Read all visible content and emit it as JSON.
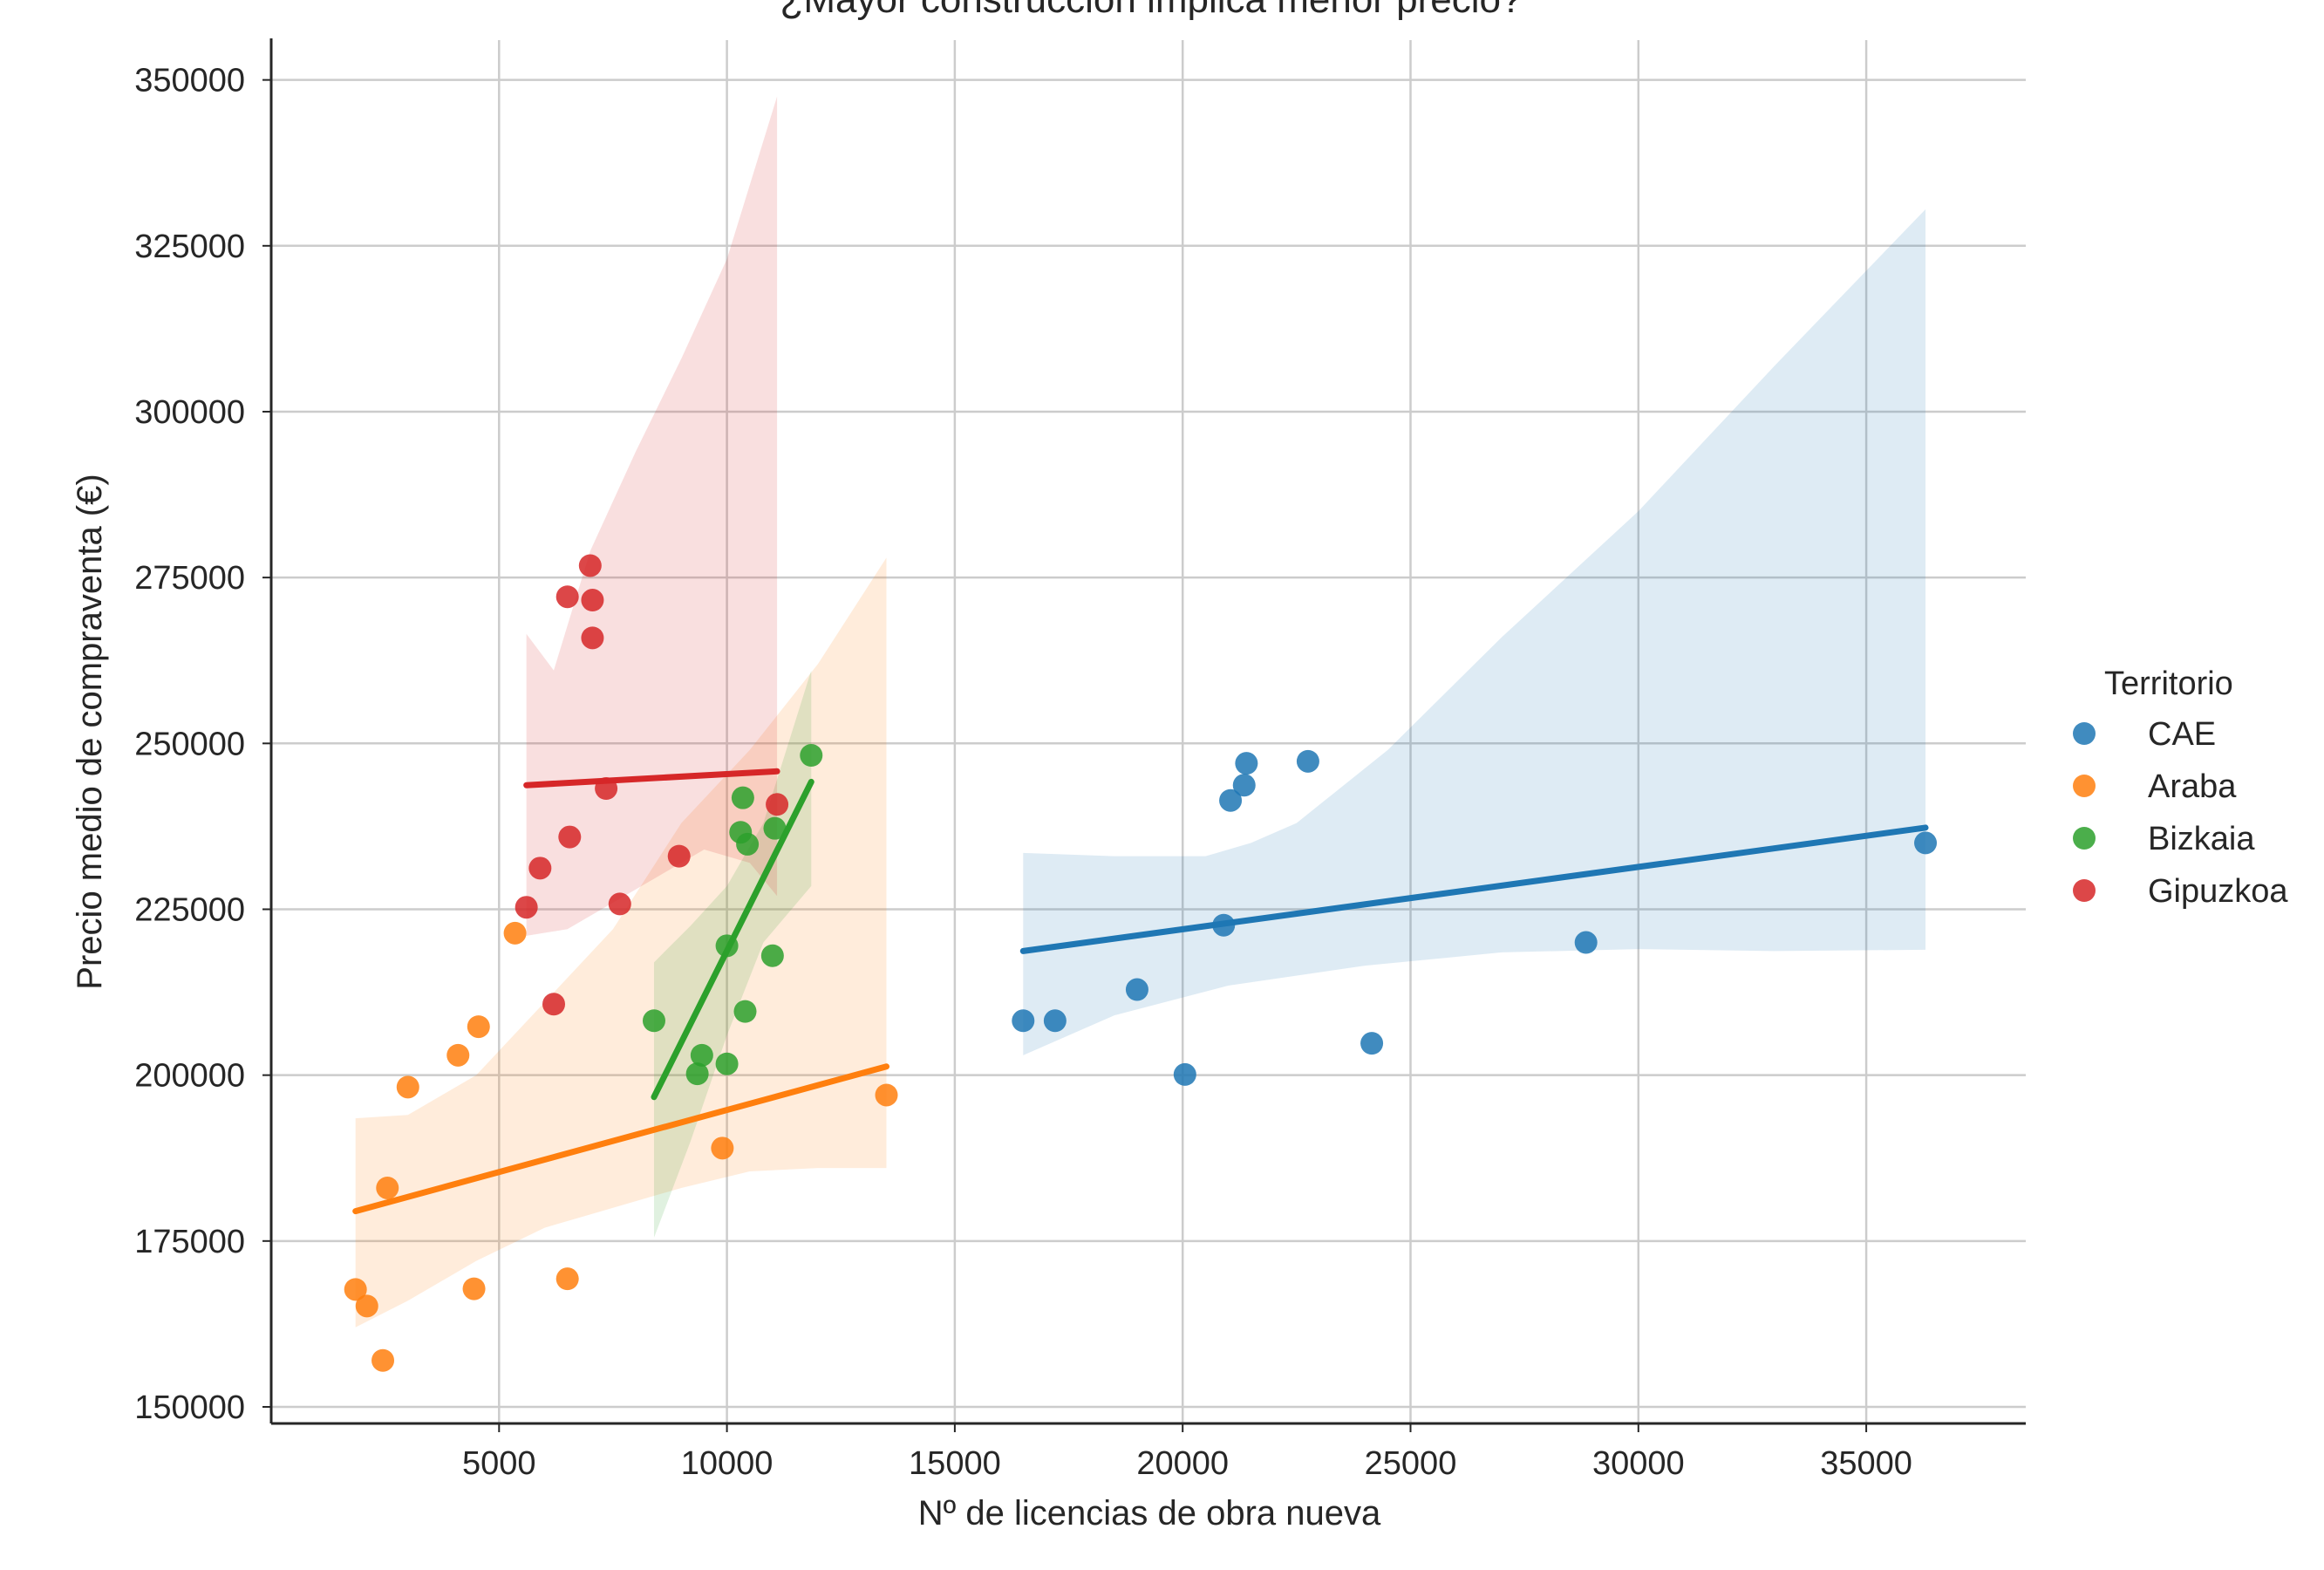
{
  "chart_data": {
    "type": "scatter",
    "title": "¿Mayor construcción implica menor precio?",
    "xlabel": "Nº de licencias de obra nueva",
    "ylabel": "Precio medio de compraventa (€)",
    "xlim": [
      0,
      38500
    ],
    "ylim": [
      147500,
      356000
    ],
    "xticks": [
      5000,
      10000,
      15000,
      20000,
      25000,
      30000,
      35000
    ],
    "yticks": [
      150000,
      175000,
      200000,
      225000,
      250000,
      275000,
      300000,
      325000,
      350000
    ],
    "grid": true,
    "legend": {
      "title": "Territorio",
      "placement": "right"
    },
    "series": [
      {
        "name": "CAE",
        "color": "#1f77b4",
        "points": [
          [
            16500,
            208200
          ],
          [
            17200,
            208200
          ],
          [
            19000,
            212900
          ],
          [
            20050,
            200100
          ],
          [
            20900,
            222600
          ],
          [
            21050,
            241400
          ],
          [
            21350,
            243700
          ],
          [
            21400,
            247000
          ],
          [
            22750,
            247300
          ],
          [
            24150,
            204800
          ],
          [
            28850,
            220000
          ],
          [
            36300,
            235000
          ]
        ],
        "fit": [
          [
            16500,
            218700
          ],
          [
            36300,
            237300
          ]
        ],
        "ci_upper": [
          [
            16500,
            233500
          ],
          [
            18500,
            233000
          ],
          [
            20500,
            233000
          ],
          [
            21500,
            235000
          ],
          [
            22500,
            238000
          ],
          [
            24500,
            249000
          ],
          [
            27000,
            266000
          ],
          [
            30000,
            285000
          ],
          [
            33000,
            307000
          ],
          [
            36300,
            330500
          ]
        ],
        "ci_lower": [
          [
            16500,
            203000
          ],
          [
            18500,
            209000
          ],
          [
            21000,
            213500
          ],
          [
            24000,
            216500
          ],
          [
            27000,
            218500
          ],
          [
            30000,
            219000
          ],
          [
            33000,
            218700
          ],
          [
            36300,
            218900
          ]
        ]
      },
      {
        "name": "Araba",
        "color": "#ff7f0e",
        "points": [
          [
            1850,
            167700
          ],
          [
            2100,
            165200
          ],
          [
            2450,
            157000
          ],
          [
            2550,
            183000
          ],
          [
            3000,
            198200
          ],
          [
            4100,
            203000
          ],
          [
            4450,
            167800
          ],
          [
            4550,
            207300
          ],
          [
            5350,
            221400
          ],
          [
            6500,
            169300
          ],
          [
            9900,
            189000
          ],
          [
            13500,
            197000
          ]
        ],
        "fit": [
          [
            1850,
            179500
          ],
          [
            13500,
            201300
          ]
        ],
        "ci_upper": [
          [
            1850,
            193500
          ],
          [
            3000,
            194000
          ],
          [
            4500,
            200000
          ],
          [
            6000,
            211000
          ],
          [
            7500,
            222000
          ],
          [
            9000,
            238000
          ],
          [
            10500,
            249000
          ],
          [
            12000,
            262000
          ],
          [
            13500,
            278000
          ]
        ],
        "ci_lower": [
          [
            1850,
            162000
          ],
          [
            3000,
            166000
          ],
          [
            4500,
            172000
          ],
          [
            6000,
            177000
          ],
          [
            7500,
            180000
          ],
          [
            9000,
            183000
          ],
          [
            10500,
            185500
          ],
          [
            12000,
            186000
          ],
          [
            13500,
            186000
          ]
        ]
      },
      {
        "name": "Bizkaia",
        "color": "#2ca02c",
        "points": [
          [
            8400,
            208200
          ],
          [
            9350,
            200200
          ],
          [
            9450,
            203000
          ],
          [
            10000,
            201700
          ],
          [
            10000,
            219500
          ],
          [
            10300,
            236600
          ],
          [
            10350,
            241800
          ],
          [
            10400,
            209600
          ],
          [
            10450,
            234800
          ],
          [
            11000,
            218000
          ],
          [
            11050,
            237200
          ],
          [
            11850,
            248200
          ]
        ],
        "fit": [
          [
            8400,
            196700
          ],
          [
            11850,
            244200
          ]
        ],
        "ci_upper": [
          [
            8400,
            217000
          ],
          [
            9200,
            222500
          ],
          [
            10000,
            228500
          ],
          [
            10800,
            238000
          ],
          [
            11850,
            261000
          ]
        ],
        "ci_lower": [
          [
            8400,
            175500
          ],
          [
            9200,
            190000
          ],
          [
            10000,
            206000
          ],
          [
            10800,
            220000
          ],
          [
            11850,
            228500
          ]
        ]
      },
      {
        "name": "Gipuzkoa",
        "color": "#d62728",
        "points": [
          [
            5600,
            225300
          ],
          [
            5900,
            231200
          ],
          [
            6200,
            210700
          ],
          [
            6500,
            272100
          ],
          [
            6550,
            235900
          ],
          [
            7000,
            276800
          ],
          [
            7050,
            271600
          ],
          [
            7050,
            265900
          ],
          [
            7350,
            243200
          ],
          [
            7650,
            225800
          ],
          [
            8950,
            233000
          ],
          [
            11100,
            240800
          ]
        ],
        "fit": [
          [
            5600,
            243700
          ],
          [
            11100,
            245800
          ]
        ],
        "ci_upper": [
          [
            5600,
            266500
          ],
          [
            6200,
            261000
          ],
          [
            7000,
            279000
          ],
          [
            8000,
            294000
          ],
          [
            9000,
            308000
          ],
          [
            10000,
            323000
          ],
          [
            11100,
            347500
          ]
        ],
        "ci_lower": [
          [
            5600,
            221000
          ],
          [
            6500,
            222000
          ],
          [
            7500,
            226000
          ],
          [
            8500,
            230000
          ],
          [
            9500,
            234000
          ],
          [
            10500,
            232000
          ],
          [
            11100,
            227000
          ]
        ]
      }
    ]
  }
}
